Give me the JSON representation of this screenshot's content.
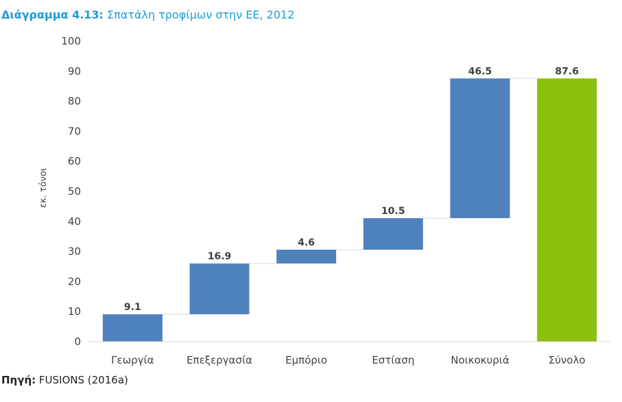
{
  "title": {
    "prefix": "Διάγραμμα 4.13:",
    "text": "Σπατάλη τροφίμων στην ΕΕ, 2012"
  },
  "source": {
    "prefix": "Πηγή:",
    "text": "FUSIONS (2016a)"
  },
  "colors": {
    "increment": "#4f81bd",
    "total": "#8dbf0f",
    "connector": "#d9d9d9",
    "axis": "#d9d9d9",
    "title": "#1f9bd8"
  },
  "chart_data": {
    "type": "bar",
    "subtype": "waterfall",
    "categories": [
      "Γεωργία",
      "Επεξεργασία",
      "Εμπόριο",
      "Εστίαση",
      "Νοικοκυριά",
      "Σύνολο"
    ],
    "values": [
      9.1,
      16.9,
      4.6,
      10.5,
      46.5,
      87.6
    ],
    "value_labels": [
      "9.1",
      "16.9",
      "4.6",
      "10.5",
      "46.5",
      "87.6"
    ],
    "is_total": [
      false,
      false,
      false,
      false,
      false,
      true
    ],
    "ylabel": "εκ. τόνοι",
    "ylim": [
      0,
      100
    ],
    "yticks": [
      0,
      10,
      20,
      30,
      40,
      50,
      60,
      70,
      80,
      90,
      100
    ],
    "grid": false,
    "legend": "none"
  }
}
